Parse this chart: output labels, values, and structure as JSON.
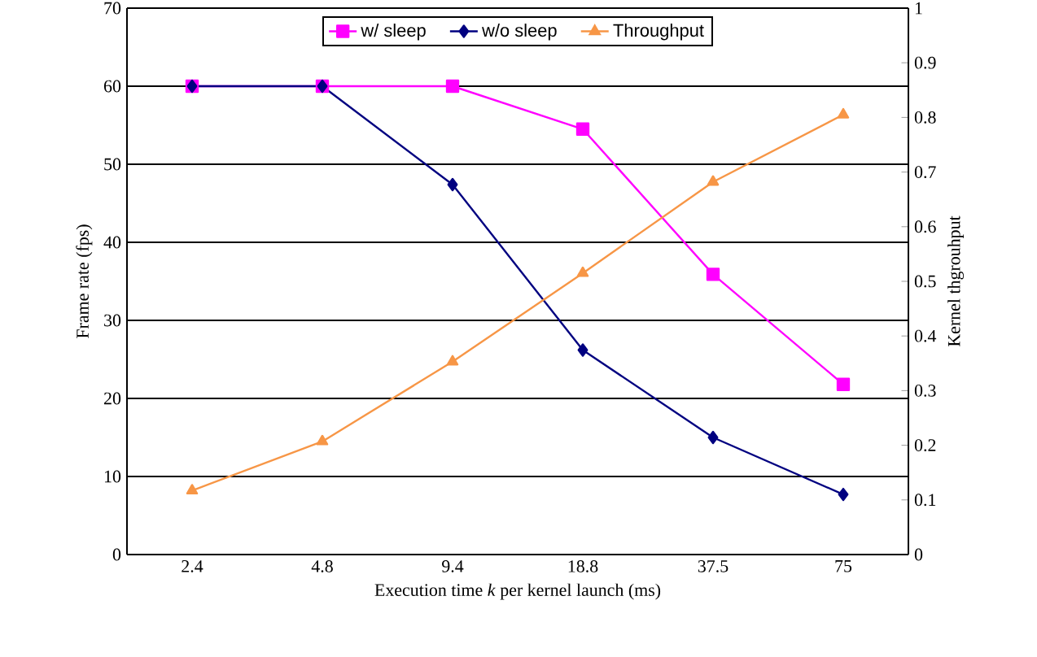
{
  "chart_data": {
    "type": "line",
    "xlabel": "Execution time *k* per kernel launch (ms)",
    "ylabel": "Frame rate (fps)",
    "y2label": "Kernel thgrouhput",
    "categories": [
      "2.4",
      "4.8",
      "9.4",
      "18.8",
      "37.5",
      "75"
    ],
    "series": [
      {
        "name": "w/ sleep",
        "color": "#ff00ff",
        "marker": "square",
        "values": [
          60,
          60,
          60,
          54.5,
          35.9,
          21.8
        ]
      },
      {
        "name": "w/o sleep",
        "color": "#000080",
        "marker": "diamond",
        "values": [
          60,
          60,
          47.4,
          26.2,
          15.0,
          7.7
        ]
      },
      {
        "name": "Throughput",
        "color": "#f79646",
        "marker": "triangle",
        "axis": "y2",
        "values": [
          0.117,
          0.207,
          0.353,
          0.515,
          0.682,
          0.805
        ]
      }
    ],
    "ylim": [
      0,
      70
    ],
    "yticks": [
      0,
      10,
      20,
      30,
      40,
      50,
      60,
      70
    ],
    "y2lim": [
      0,
      1
    ],
    "y2ticks": [
      0,
      0.1,
      0.2,
      0.3,
      0.4,
      0.5,
      0.6,
      0.7,
      0.8,
      0.9,
      1
    ],
    "grid": "y",
    "legend": "top"
  }
}
